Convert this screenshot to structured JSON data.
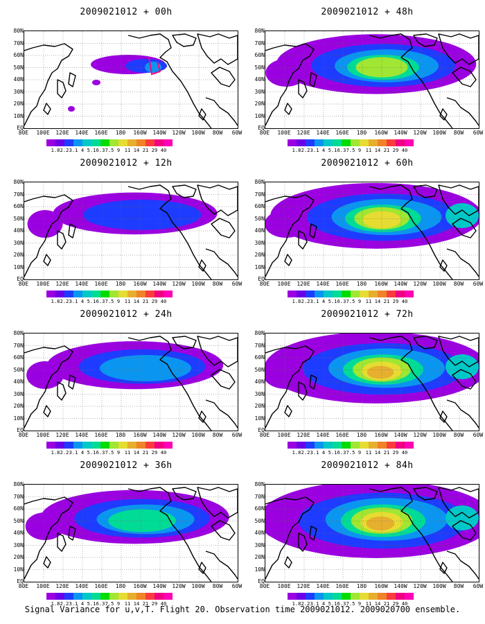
{
  "panels": [
    {
      "title": "2009021012 + 00h",
      "level": 0
    },
    {
      "title": "2009021012 + 48h",
      "level": 4
    },
    {
      "title": "2009021012 + 12h",
      "level": 1
    },
    {
      "title": "2009021012 + 60h",
      "level": 5
    },
    {
      "title": "2009021012 + 24h",
      "level": 2
    },
    {
      "title": "2009021012 + 72h",
      "level": 6
    },
    {
      "title": "2009021012 + 36h",
      "level": 3
    },
    {
      "title": "2009021012 + 84h",
      "level": 7
    }
  ],
  "lat_labels": [
    "80N",
    "70N",
    "60N",
    "50N",
    "40N",
    "30N",
    "20N",
    "10N",
    "EQ"
  ],
  "lon_labels": [
    "80E",
    "100E",
    "120E",
    "140E",
    "160E",
    "180",
    "160W",
    "140W",
    "120W",
    "100W",
    "80W",
    "60W"
  ],
  "colorbar": {
    "colors": [
      "#9b00e0",
      "#6a00e8",
      "#1e3cff",
      "#0a96f0",
      "#00c8c8",
      "#00dc96",
      "#00dc00",
      "#a0e632",
      "#e6dc32",
      "#e6af2d",
      "#f08228",
      "#fa3c3c",
      "#f00082",
      "#ff00b4"
    ],
    "labels": [
      "1.8",
      "2.2",
      "3.1",
      "4",
      "5.1",
      "6.3",
      "7.5",
      "9",
      "11",
      "14",
      "21",
      "29",
      "40"
    ]
  },
  "caption": "Signal Variance for u,v,T. Flight 20. Observation time 2009021012. 2009020700 ensemble."
}
